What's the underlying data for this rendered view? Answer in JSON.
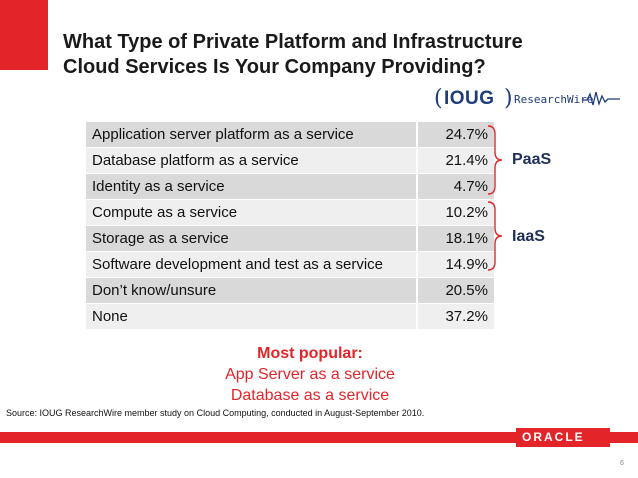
{
  "title": {
    "line1": "What Type of Private Platform and Infrastructure",
    "line2": "Cloud Services Is Your Company Providing?"
  },
  "logo": {
    "open_paren": "(",
    "name": "IOUG",
    "close_paren": ")",
    "sub": "ResearchWire"
  },
  "rows": [
    {
      "label": "Application server platform as a service",
      "value": "24.7%"
    },
    {
      "label": "Database platform as a service",
      "value": "21.4%"
    },
    {
      "label": "Identity as a service",
      "value": "4.7%"
    },
    {
      "label": "Compute as a service",
      "value": "10.2%"
    },
    {
      "label": "Storage as a service",
      "value": "18.1%"
    },
    {
      "label": "Software development and test as a service",
      "value": "14.9%"
    },
    {
      "label": "Don’t know/unsure",
      "value": "20.5%"
    },
    {
      "label": "None",
      "value": "37.2%"
    }
  ],
  "groups": {
    "paas": "PaaS",
    "iaas": "IaaS"
  },
  "popular": {
    "heading": "Most popular:",
    "line1": "App Server as a service",
    "line2": "Database as a service"
  },
  "source": "Source: IOUG ResearchWire member study on Cloud Computing, conducted in August-September 2010.",
  "footer": {
    "brand": "ORACLE",
    "page_number": "6"
  },
  "colors": {
    "accent_red": "#e3252a",
    "row_dark": "#d9d9d9",
    "row_light": "#efefef",
    "logo_blue": "#1f3d7a"
  }
}
